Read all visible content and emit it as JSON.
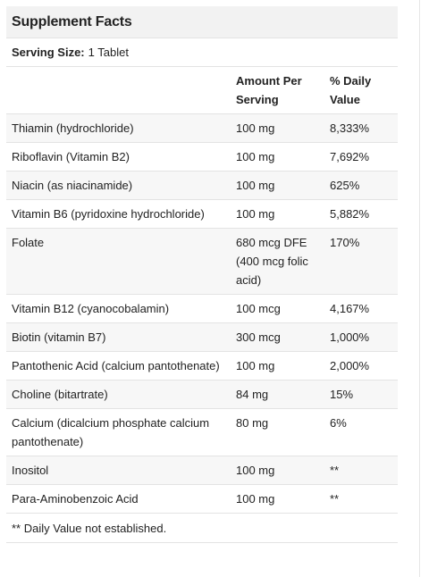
{
  "title": "Supplement Facts",
  "serving": {
    "label": "Serving Size:",
    "value": "1 Tablet"
  },
  "columns": {
    "amount": "Amount Per Serving",
    "dv": "% Daily Value"
  },
  "rows": [
    {
      "name": "Thiamin (hydrochloride)",
      "amount": "100 mg",
      "dv": "8,333%"
    },
    {
      "name": "Riboflavin (Vitamin B2)",
      "amount": "100 mg",
      "dv": "7,692%"
    },
    {
      "name": "Niacin (as niacinamide)",
      "amount": "100 mg",
      "dv": "625%"
    },
    {
      "name": "Vitamin B6 (pyridoxine hydrochloride)",
      "amount": "100 mg",
      "dv": "5,882%"
    },
    {
      "name": "Folate",
      "amount": "680 mcg DFE (400 mcg folic acid)",
      "dv": "170%"
    },
    {
      "name": "Vitamin B12 (cyanocobalamin)",
      "amount": "100 mcg",
      "dv": "4,167%"
    },
    {
      "name": "Biotin (vitamin B7)",
      "amount": "300 mcg",
      "dv": "1,000%"
    },
    {
      "name": "Pantothenic Acid (calcium pantothenate)",
      "amount": "100 mg",
      "dv": "2,000%"
    },
    {
      "name": "Choline (bitartrate)",
      "amount": "84 mg",
      "dv": "15%"
    },
    {
      "name": "Calcium (dicalcium phosphate calcium pantothenate)",
      "amount": "80 mg",
      "dv": "6%"
    },
    {
      "name": "Inositol",
      "amount": "100 mg",
      "dv": "**"
    },
    {
      "name": "Para-Aminobenzoic Acid",
      "amount": "100 mg",
      "dv": "**"
    }
  ],
  "footnote": "** Daily Value not established."
}
